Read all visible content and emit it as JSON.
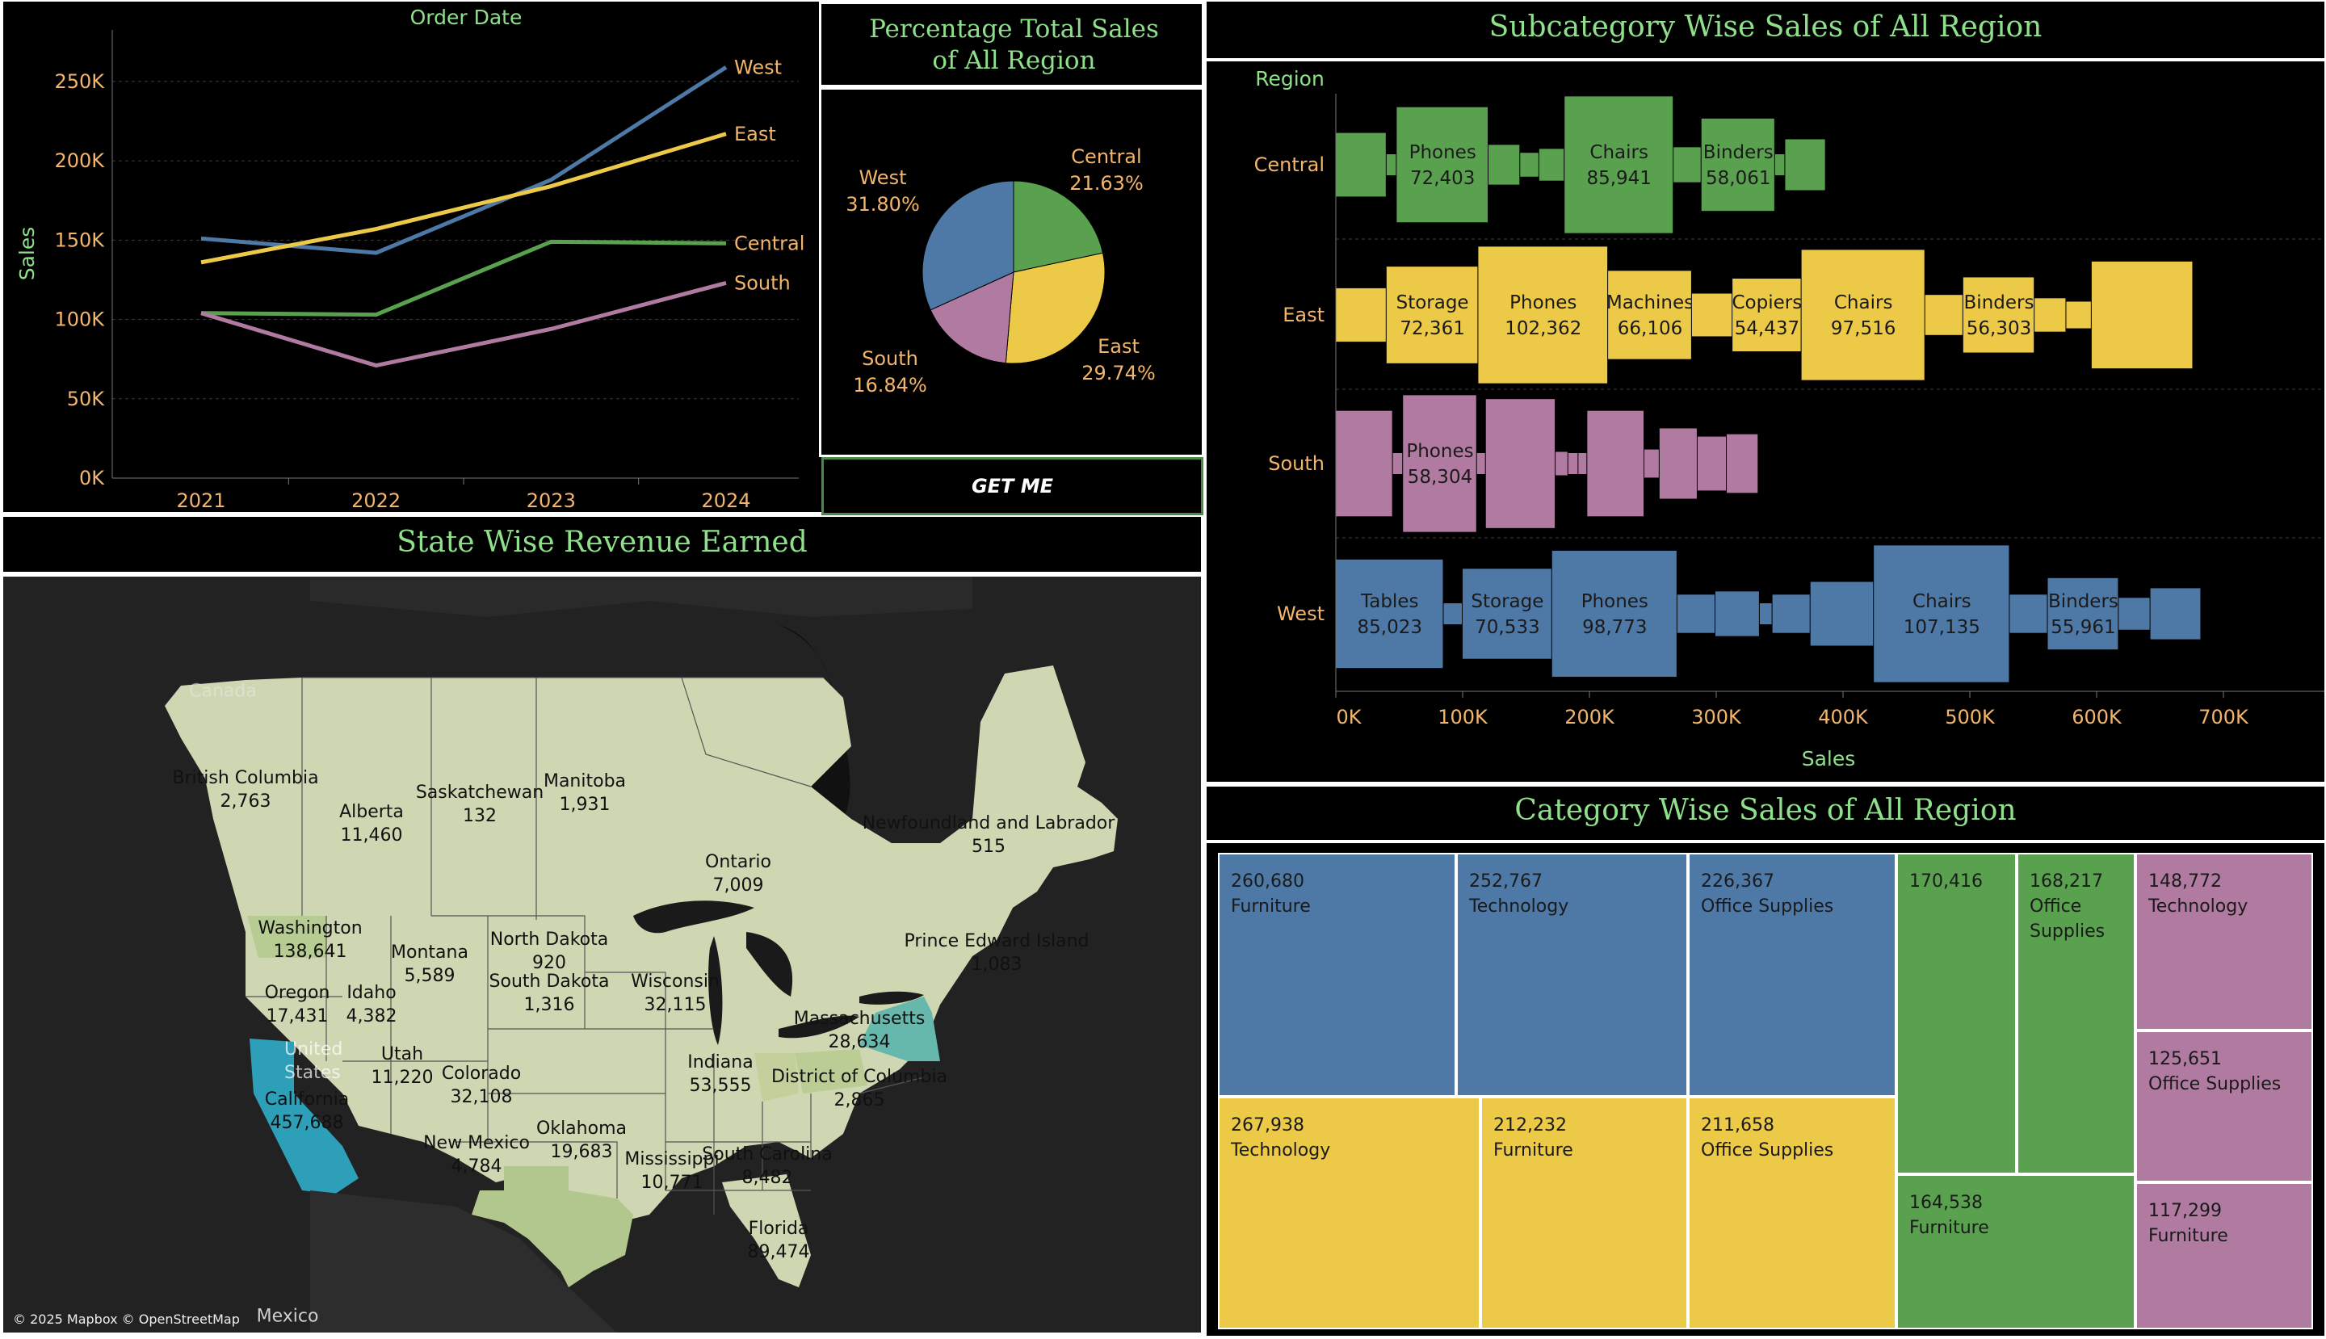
{
  "colors": {
    "central": "#59a14f",
    "east": "#edc948",
    "south": "#b07aa1",
    "west": "#4e79a7",
    "title_green": "#8fe08a",
    "axis_orange": "#f2b56b"
  },
  "line_panel": {
    "title": "Order Date",
    "ylabel": "Sales"
  },
  "pie_panel": {
    "title": "Percentage Total Sales of All Region",
    "button_label": "GET ME"
  },
  "map_panel": {
    "title": "State Wise Revenue Earned",
    "attribution": "© 2025 Mapbox © OpenStreetMap",
    "background_labels": [
      "Canada",
      "United States",
      "Mexico"
    ],
    "labels": [
      {
        "name": "British Columbia",
        "value": "2,763"
      },
      {
        "name": "Alberta",
        "value": "11,460"
      },
      {
        "name": "Saskatchewan",
        "value": "132"
      },
      {
        "name": "Manitoba",
        "value": "1,931"
      },
      {
        "name": "Ontario",
        "value": "7,009"
      },
      {
        "name": "Newfoundland and Labrador",
        "value": "515"
      },
      {
        "name": "Prince Edward Island",
        "value": "1,083"
      },
      {
        "name": "Washington",
        "value": "138,641"
      },
      {
        "name": "Oregon",
        "value": "17,431"
      },
      {
        "name": "Idaho",
        "value": "4,382"
      },
      {
        "name": "Montana",
        "value": "5,589"
      },
      {
        "name": "North Dakota",
        "value": "920"
      },
      {
        "name": "South Dakota",
        "value": "1,316"
      },
      {
        "name": "Wisconsin",
        "value": "32,115"
      },
      {
        "name": "Massachusetts",
        "value": "28,634"
      },
      {
        "name": "Indiana",
        "value": "53,555"
      },
      {
        "name": "District of Columbia",
        "value": "2,865"
      },
      {
        "name": "Utah",
        "value": "11,220"
      },
      {
        "name": "Colorado",
        "value": "32,108"
      },
      {
        "name": "California",
        "value": "457,688"
      },
      {
        "name": "New Mexico",
        "value": "4,784"
      },
      {
        "name": "Oklahoma",
        "value": "19,683"
      },
      {
        "name": "Mississippi",
        "value": "10,771"
      },
      {
        "name": "South Carolina",
        "value": "8,482"
      },
      {
        "name": "Florida",
        "value": "89,474"
      }
    ]
  },
  "subcat_panel": {
    "title": "Subcategory Wise Sales of All Region",
    "legend_title": "Region",
    "xlabel": "Sales"
  },
  "treemap_panel": {
    "title": "Category Wise Sales of All Region"
  },
  "chart_data": [
    {
      "type": "line",
      "title": "Order Date",
      "xlabel": "",
      "ylabel": "Sales",
      "x": [
        "2021",
        "2022",
        "2023",
        "2024"
      ],
      "ylim": [
        0,
        280000
      ],
      "yticks": [
        0,
        50000,
        100000,
        150000,
        200000,
        250000
      ],
      "ytick_labels": [
        "0K",
        "50K",
        "100K",
        "150K",
        "200K",
        "250K"
      ],
      "grid": true,
      "series": [
        {
          "name": "West",
          "color": "#4e79a7",
          "values": [
            151000,
            142000,
            188000,
            259000
          ]
        },
        {
          "name": "East",
          "color": "#edc948",
          "values": [
            136000,
            157000,
            184000,
            217000
          ]
        },
        {
          "name": "Central",
          "color": "#59a14f",
          "values": [
            104000,
            103000,
            149000,
            148000
          ]
        },
        {
          "name": "South",
          "color": "#b07aa1",
          "values": [
            104000,
            71000,
            94000,
            123000
          ]
        }
      ]
    },
    {
      "type": "pie",
      "title": "Percentage Total Sales of All Region",
      "slices": [
        {
          "name": "Central",
          "label": "21.63%",
          "value": 21.63,
          "color": "#59a14f"
        },
        {
          "name": "East",
          "label": "29.74%",
          "value": 29.74,
          "color": "#edc948"
        },
        {
          "name": "South",
          "label": "16.84%",
          "value": 16.84,
          "color": "#b07aa1"
        },
        {
          "name": "West",
          "label": "31.80%",
          "value": 31.8,
          "color": "#4e79a7"
        }
      ]
    },
    {
      "type": "bar",
      "title": "Subcategory Wise Sales of All Region",
      "xlabel": "Sales",
      "ylabel": "Region",
      "xlim": [
        0,
        740000
      ],
      "xticks": [
        0,
        100000,
        200000,
        300000,
        400000,
        500000,
        600000,
        700000
      ],
      "xtick_labels": [
        "0K",
        "100K",
        "200K",
        "300K",
        "400K",
        "500K",
        "600K",
        "700K"
      ],
      "stacked": true,
      "series": [
        {
          "region": "Central",
          "color": "#59a14f",
          "segments": [
            {
              "label": "",
              "value": 40000
            },
            {
              "label": "",
              "value": 8000
            },
            {
              "label": "Phones",
              "value_label": "72,403",
              "value": 72403
            },
            {
              "label": "",
              "value": 25000
            },
            {
              "label": "",
              "value": 15000
            },
            {
              "label": "",
              "value": 20000
            },
            {
              "label": "Chairs",
              "value_label": "85,941",
              "value": 85941
            },
            {
              "label": "",
              "value": 22000
            },
            {
              "label": "Binders",
              "value_label": "58,061",
              "value": 58061
            },
            {
              "label": "",
              "value": 8000
            },
            {
              "label": "",
              "value": 32000
            }
          ]
        },
        {
          "region": "East",
          "color": "#edc948",
          "segments": [
            {
              "label": "",
              "value": 40000
            },
            {
              "label": "Storage",
              "value_label": "72,361",
              "value": 72361
            },
            {
              "label": "Phones",
              "value_label": "102,362",
              "value": 102362
            },
            {
              "label": "Machines",
              "value_label": "66,106",
              "value": 66106
            },
            {
              "label": "",
              "value": 32000
            },
            {
              "label": "Copiers",
              "value_label": "54,437",
              "value": 54437
            },
            {
              "label": "Chairs",
              "value_label": "97,516",
              "value": 97516
            },
            {
              "label": "",
              "value": 30000
            },
            {
              "label": "Binders",
              "value_label": "56,303",
              "value": 56303
            },
            {
              "label": "",
              "value": 25000
            },
            {
              "label": "",
              "value": 20000
            },
            {
              "label": "",
              "value": 80000
            }
          ]
        },
        {
          "region": "South",
          "color": "#b07aa1",
          "segments": [
            {
              "label": "",
              "value": 45000
            },
            {
              "label": "",
              "value": 8000
            },
            {
              "label": "Phones",
              "value_label": "58,304",
              "value": 58304
            },
            {
              "label": "",
              "value": 7000
            },
            {
              "label": "",
              "value": 55000
            },
            {
              "label": "",
              "value": 10000
            },
            {
              "label": "",
              "value": 8000
            },
            {
              "label": "",
              "value": 7000
            },
            {
              "label": "",
              "value": 45000
            },
            {
              "label": "",
              "value": 12000
            },
            {
              "label": "",
              "value": 30000
            },
            {
              "label": "",
              "value": 23000
            },
            {
              "label": "",
              "value": 25000
            }
          ]
        },
        {
          "region": "West",
          "color": "#4e79a7",
          "segments": [
            {
              "label": "Tables",
              "value_label": "85,023",
              "value": 85023
            },
            {
              "label": "",
              "value": 15000
            },
            {
              "label": "Storage",
              "value_label": "70,533",
              "value": 70533
            },
            {
              "label": "Phones",
              "value_label": "98,773",
              "value": 98773
            },
            {
              "label": "",
              "value": 30000
            },
            {
              "label": "",
              "value": 35000
            },
            {
              "label": "",
              "value": 10000
            },
            {
              "label": "",
              "value": 30000
            },
            {
              "label": "",
              "value": 50000
            },
            {
              "label": "Chairs",
              "value_label": "107,135",
              "value": 107135
            },
            {
              "label": "",
              "value": 30000
            },
            {
              "label": "Binders",
              "value_label": "55,961",
              "value": 55961
            },
            {
              "label": "",
              "value": 25000
            },
            {
              "label": "",
              "value": 40000
            }
          ]
        }
      ]
    },
    {
      "type": "treemap",
      "title": "Category Wise Sales of All Region",
      "cells": [
        {
          "region": "West",
          "category": "Furniture",
          "value": 260680,
          "value_label": "260,680",
          "color": "#4e79a7"
        },
        {
          "region": "West",
          "category": "Technology",
          "value": 252767,
          "value_label": "252,767",
          "color": "#4e79a7"
        },
        {
          "region": "West",
          "category": "Office Supplies",
          "value": 226367,
          "value_label": "226,367",
          "color": "#4e79a7"
        },
        {
          "region": "East",
          "category": "Technology",
          "value": 267938,
          "value_label": "267,938",
          "color": "#edc948"
        },
        {
          "region": "East",
          "category": "Furniture",
          "value": 212232,
          "value_label": "212,232",
          "color": "#edc948"
        },
        {
          "region": "East",
          "category": "Office Supplies",
          "value": 211658,
          "value_label": "211,658",
          "color": "#edc948"
        },
        {
          "region": "Central",
          "category": "",
          "value": 170416,
          "value_label": "170,416",
          "color": "#59a14f"
        },
        {
          "region": "Central",
          "category": "Office Supplies",
          "value": 168217,
          "value_label": "168,217",
          "color": "#59a14f"
        },
        {
          "region": "Central",
          "category": "Furniture",
          "value": 164538,
          "value_label": "164,538",
          "color": "#59a14f"
        },
        {
          "region": "South",
          "category": "Technology",
          "value": 148772,
          "value_label": "148,772",
          "color": "#b07aa1"
        },
        {
          "region": "South",
          "category": "Office Supplies",
          "value": 125651,
          "value_label": "125,651",
          "color": "#b07aa1"
        },
        {
          "region": "South",
          "category": "Furniture",
          "value": 117299,
          "value_label": "117,299",
          "color": "#b07aa1"
        }
      ]
    }
  ]
}
